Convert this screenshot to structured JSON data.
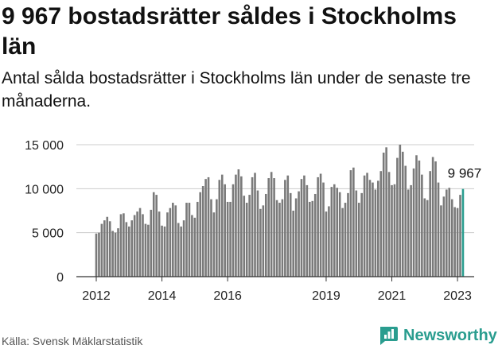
{
  "header": {
    "title": "9 967 bostadsrätter såldes i Stockholms län",
    "subtitle": "Antal sålda bostadsrätter i Stockholms län under de senaste tre månaderna."
  },
  "footer": {
    "source": "Källa: Svensk Mäklarstatistik",
    "brand": "Newsworthy"
  },
  "colors": {
    "bar": "#7a7a7a",
    "highlight": "#2a9d8f",
    "grid": "#cccccc",
    "axis": "#333333"
  },
  "chart_data": {
    "type": "bar",
    "title": "9 967 bostadsrätter såldes i Stockholms län",
    "xlabel": "",
    "ylabel": "",
    "ylim": [
      0,
      15000
    ],
    "yticks": [
      0,
      5000,
      10000,
      15000
    ],
    "ytick_labels": [
      "0",
      "5 000",
      "10 000",
      "15 000"
    ],
    "xticks": [
      {
        "label": "2012",
        "index": 0
      },
      {
        "label": "2014",
        "index": 24
      },
      {
        "label": "2016",
        "index": 48
      },
      {
        "label": "2019",
        "index": 84
      },
      {
        "label": "2021",
        "index": 108
      },
      {
        "label": "2023",
        "index": 132
      }
    ],
    "grid": true,
    "start": "2012-01",
    "frequency": "monthly",
    "values": [
      4900,
      5000,
      6000,
      6400,
      6800,
      6300,
      5200,
      5000,
      5500,
      7100,
      7200,
      6200,
      5700,
      6400,
      7000,
      7400,
      7800,
      7100,
      6000,
      5900,
      7600,
      9600,
      9300,
      7400,
      5800,
      5700,
      7300,
      7800,
      8400,
      8100,
      6100,
      5700,
      6400,
      8400,
      8400,
      7000,
      6700,
      8500,
      9600,
      10300,
      11100,
      11300,
      8800,
      7300,
      8800,
      11000,
      11600,
      10500,
      8500,
      8500,
      10500,
      11600,
      12200,
      11400,
      9200,
      8400,
      9300,
      11300,
      11800,
      9800,
      7700,
      8100,
      9400,
      11200,
      11900,
      11200,
      8700,
      8400,
      8800,
      11000,
      11500,
      9500,
      7500,
      8900,
      9700,
      11100,
      11500,
      10400,
      8500,
      8600,
      9400,
      11300,
      11700,
      10700,
      7400,
      8000,
      10200,
      10500,
      10100,
      9600,
      7800,
      8400,
      9500,
      12100,
      12400,
      9800,
      8400,
      9500,
      11500,
      11800,
      11000,
      10700,
      9900,
      10900,
      12000,
      14100,
      14700,
      11900,
      10400,
      10500,
      13500,
      15000,
      14200,
      12600,
      9900,
      10400,
      12300,
      13800,
      13200,
      11600,
      8900,
      8700,
      12000,
      13600,
      13100,
      10700,
      8100,
      9100,
      9900,
      10100,
      8800,
      7900,
      7800,
      9300,
      9967
    ],
    "highlight": {
      "index": 134,
      "label": "9 967",
      "value": 9967
    }
  }
}
